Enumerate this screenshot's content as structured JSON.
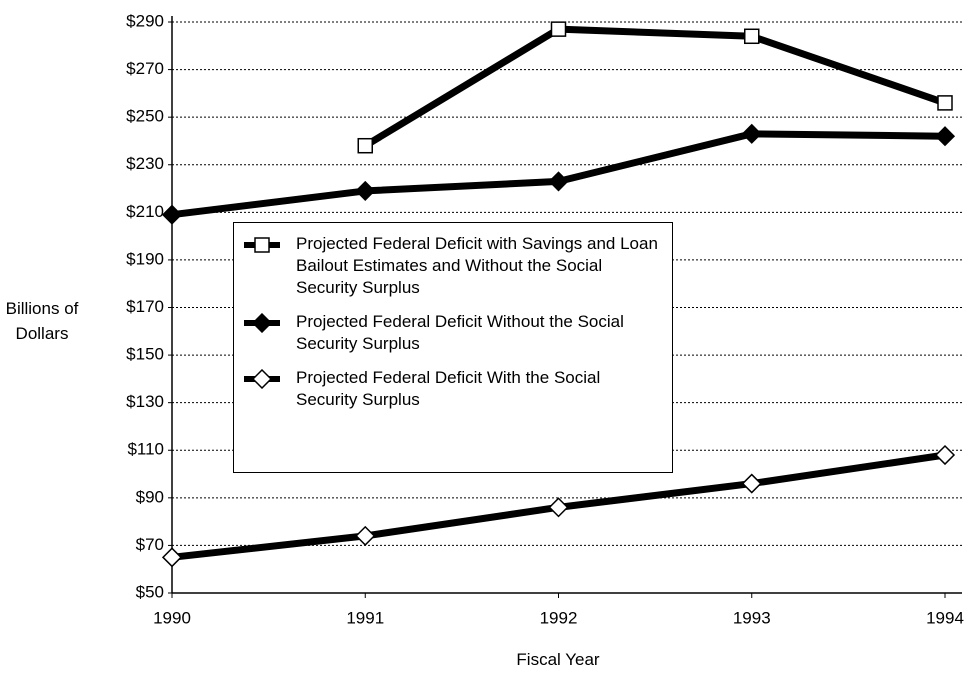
{
  "chart_data": {
    "type": "line",
    "x_label": "Fiscal Year",
    "y_label": "Billions of Dollars",
    "categories": [
      "1990",
      "1991",
      "1992",
      "1993",
      "1994"
    ],
    "series": [
      {
        "name": "Projected Federal Deficit with Savings and Loan Bailout Estimates and Without the Social Security Surplus",
        "color": "#000000",
        "marker": "square-open",
        "values": [
          null,
          238,
          287,
          284,
          256
        ]
      },
      {
        "name": "Projected Federal Deficit Without the Social Security Surplus",
        "color": "#000000",
        "marker": "diamond-filled",
        "values": [
          209,
          219,
          223,
          243,
          242
        ]
      },
      {
        "name": "Projected Federal Deficit With the Social Security Surplus",
        "color": "#000000",
        "marker": "diamond-open",
        "values": [
          65,
          74,
          86,
          96,
          108
        ]
      }
    ],
    "ylim": [
      50,
      290
    ],
    "yticks": [
      {
        "value": 50,
        "label": "$50"
      },
      {
        "value": 70,
        "label": "$70"
      },
      {
        "value": 90,
        "label": "$90"
      },
      {
        "value": 110,
        "label": "$110"
      },
      {
        "value": 130,
        "label": "$130"
      },
      {
        "value": 150,
        "label": "$150"
      },
      {
        "value": 170,
        "label": "$170"
      },
      {
        "value": 190,
        "label": "$190"
      },
      {
        "value": 210,
        "label": "$210"
      },
      {
        "value": 230,
        "label": "$230"
      },
      {
        "value": 250,
        "label": "$250"
      },
      {
        "value": 270,
        "label": "$270"
      },
      {
        "value": 290,
        "label": "$290"
      }
    ],
    "grid": true
  }
}
